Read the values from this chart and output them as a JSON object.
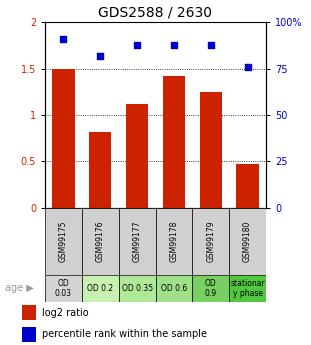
{
  "title": "GDS2588 / 2630",
  "samples": [
    "GSM99175",
    "GSM99176",
    "GSM99177",
    "GSM99178",
    "GSM99179",
    "GSM99180"
  ],
  "log2_ratio": [
    1.5,
    0.82,
    1.12,
    1.42,
    1.25,
    0.47
  ],
  "percentile_rank": [
    91,
    82,
    88,
    88,
    88,
    76
  ],
  "bar_color": "#cc2200",
  "dot_color": "#0000cc",
  "ylim_left": [
    0,
    2
  ],
  "ylim_right": [
    0,
    100
  ],
  "yticks_left": [
    0,
    0.5,
    1.0,
    1.5,
    2.0
  ],
  "yticks_right": [
    0,
    25,
    50,
    75,
    100
  ],
  "ytick_labels_left": [
    "0",
    "0.5",
    "1",
    "1.5",
    "2"
  ],
  "ytick_labels_right": [
    "0",
    "25",
    "50",
    "75",
    "100%"
  ],
  "hlines": [
    0.5,
    1.0,
    1.5
  ],
  "age_labels": [
    "OD\n0.03",
    "OD 0.2",
    "OD 0.35",
    "OD 0.6",
    "OD\n0.9",
    "stationar\ny phase"
  ],
  "age_bg_colors": [
    "#d4d4d4",
    "#c8f0b0",
    "#b0e898",
    "#a0e088",
    "#78d060",
    "#50c840"
  ],
  "sample_bg_color": "#d0d0d0",
  "legend_items": [
    {
      "label": "log2 ratio",
      "color": "#cc2200"
    },
    {
      "label": "percentile rank within the sample",
      "color": "#0000cc"
    }
  ],
  "title_fontsize": 10,
  "tick_fontsize": 7,
  "sample_fontsize": 5.5,
  "age_fontsize": 5.5,
  "legend_fontsize": 7
}
